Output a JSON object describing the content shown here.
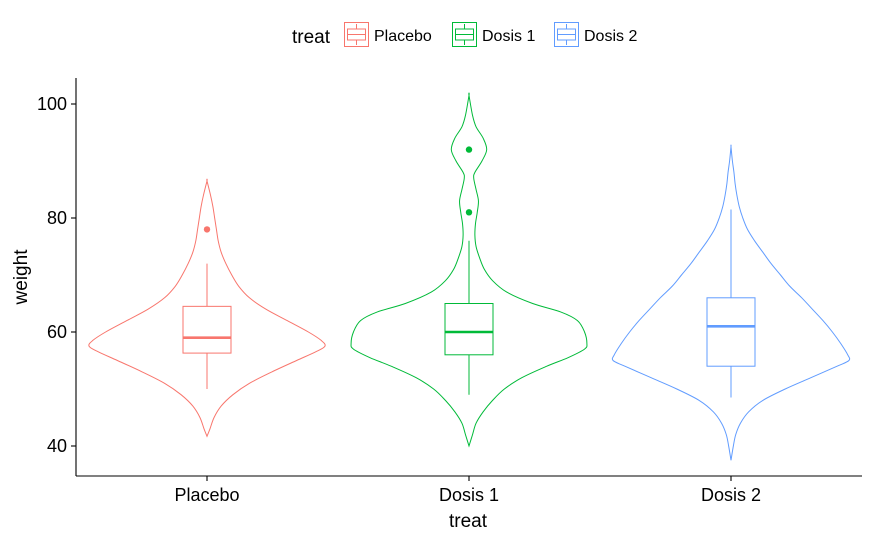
{
  "chart_data": {
    "type": "violin",
    "xlabel": "treat",
    "ylabel": "weight",
    "ylim": [
      35,
      103
    ],
    "yticks": [
      40,
      60,
      80,
      100
    ],
    "grid": false,
    "legend": {
      "title": "treat",
      "position": "top",
      "entries": [
        "Placebo",
        "Dosis 1",
        "Dosis 2"
      ]
    },
    "categories": [
      "Placebo",
      "Dosis 1",
      "Dosis 2"
    ],
    "series": [
      {
        "name": "Placebo",
        "color": "#F8766D",
        "violin_range": [
          41.7,
          86.5
        ],
        "density": [
          [
            41.7,
            0
          ],
          [
            43,
            0.025
          ],
          [
            45,
            0.06
          ],
          [
            47,
            0.12
          ],
          [
            49,
            0.22
          ],
          [
            51,
            0.36
          ],
          [
            53,
            0.55
          ],
          [
            55,
            0.76
          ],
          [
            56.5,
            0.92
          ],
          [
            57.5,
            1.0
          ],
          [
            58.5,
            0.97
          ],
          [
            60,
            0.86
          ],
          [
            62,
            0.68
          ],
          [
            64,
            0.5
          ],
          [
            66,
            0.36
          ],
          [
            68,
            0.27
          ],
          [
            70,
            0.21
          ],
          [
            72,
            0.16
          ],
          [
            74,
            0.12
          ],
          [
            76,
            0.095
          ],
          [
            78,
            0.08
          ],
          [
            80,
            0.065
          ],
          [
            82,
            0.05
          ],
          [
            84,
            0.03
          ],
          [
            86.5,
            0
          ]
        ],
        "box": {
          "whisker_low": 50,
          "q1": 56.3,
          "median": 59,
          "q3": 64.5,
          "whisker_high": 72
        },
        "outliers": [
          78
        ]
      },
      {
        "name": "Dosis 1",
        "color": "#00BA38",
        "violin_range": [
          40,
          101.5
        ],
        "density": [
          [
            40,
            0
          ],
          [
            42,
            0.03
          ],
          [
            44,
            0.06
          ],
          [
            46,
            0.12
          ],
          [
            48,
            0.2
          ],
          [
            50,
            0.3
          ],
          [
            52,
            0.45
          ],
          [
            54,
            0.66
          ],
          [
            55.5,
            0.84
          ],
          [
            57,
            0.98
          ],
          [
            58,
            1.0
          ],
          [
            60,
            0.98
          ],
          [
            62,
            0.92
          ],
          [
            63.5,
            0.78
          ],
          [
            65,
            0.54
          ],
          [
            67,
            0.32
          ],
          [
            69,
            0.2
          ],
          [
            71,
            0.13
          ],
          [
            73,
            0.09
          ],
          [
            75,
            0.06
          ],
          [
            77,
            0.05
          ],
          [
            79,
            0.055
          ],
          [
            81,
            0.07
          ],
          [
            83,
            0.08
          ],
          [
            85,
            0.06
          ],
          [
            87,
            0.04
          ],
          [
            88,
            0.05
          ],
          [
            90,
            0.11
          ],
          [
            92,
            0.15
          ],
          [
            94,
            0.12
          ],
          [
            96,
            0.06
          ],
          [
            98,
            0.03
          ],
          [
            101.5,
            0
          ]
        ],
        "box": {
          "whisker_low": 49,
          "q1": 56,
          "median": 60,
          "q3": 65,
          "whisker_high": 76
        },
        "outliers": [
          81,
          92
        ]
      },
      {
        "name": "Dosis 2",
        "color": "#619CFF",
        "violin_range": [
          37.5,
          92.5
        ],
        "density": [
          [
            37.5,
            0
          ],
          [
            40,
            0.02
          ],
          [
            42,
            0.04
          ],
          [
            44,
            0.08
          ],
          [
            46,
            0.15
          ],
          [
            48,
            0.27
          ],
          [
            50,
            0.46
          ],
          [
            52,
            0.68
          ],
          [
            54,
            0.9
          ],
          [
            55,
            1.0
          ],
          [
            56,
            0.99
          ],
          [
            58,
            0.93
          ],
          [
            60,
            0.86
          ],
          [
            62,
            0.78
          ],
          [
            64,
            0.69
          ],
          [
            66,
            0.6
          ],
          [
            68,
            0.5
          ],
          [
            70,
            0.42
          ],
          [
            72,
            0.34
          ],
          [
            74,
            0.27
          ],
          [
            76,
            0.2
          ],
          [
            78,
            0.14
          ],
          [
            80,
            0.1
          ],
          [
            82,
            0.07
          ],
          [
            84,
            0.05
          ],
          [
            86,
            0.035
          ],
          [
            88,
            0.025
          ],
          [
            90,
            0.012
          ],
          [
            92.5,
            0
          ]
        ],
        "box": {
          "whisker_low": 48.5,
          "q1": 54,
          "median": 61,
          "q3": 66,
          "whisker_high": 81.5
        },
        "outliers": []
      }
    ]
  }
}
